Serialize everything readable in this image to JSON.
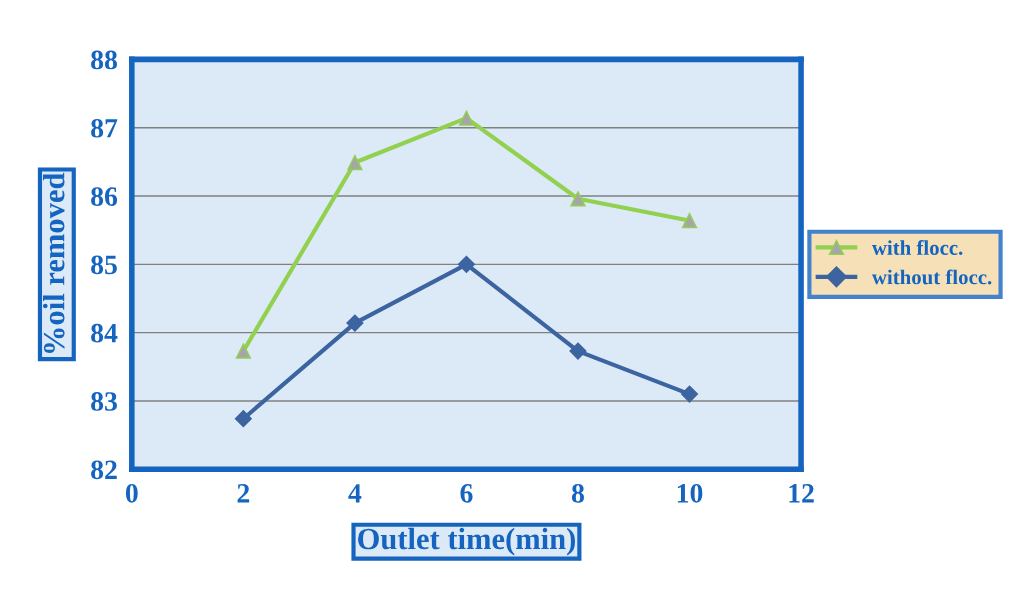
{
  "chart_data": {
    "type": "line",
    "xlabel": "Outlet time(min)",
    "ylabel": "%oil removed",
    "x": [
      2,
      4,
      6,
      8,
      10
    ],
    "series": [
      {
        "name": "with flocc.",
        "color": "#92d050",
        "marker": "triangle",
        "values": [
          83.73,
          86.49,
          87.14,
          85.96,
          85.64
        ]
      },
      {
        "name": "without flocc.",
        "color": "#3c64a0",
        "marker": "diamond",
        "values": [
          82.74,
          84.14,
          85.0,
          83.73,
          83.1
        ]
      }
    ],
    "xlim": [
      0,
      12
    ],
    "xticks": [
      0,
      2,
      4,
      6,
      8,
      10,
      12
    ],
    "ylim": [
      82,
      88
    ],
    "yticks": [
      82,
      83,
      84,
      85,
      86,
      87,
      88
    ],
    "grid": "y",
    "legend": "right"
  }
}
